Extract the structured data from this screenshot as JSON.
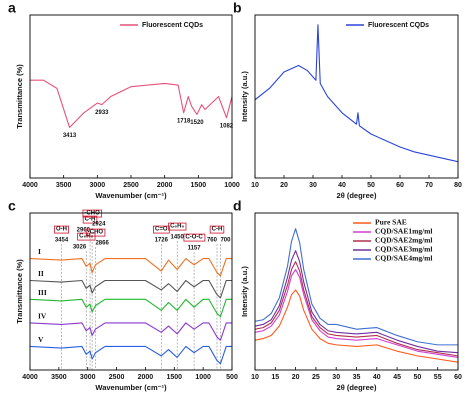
{
  "chart_data": [
    {
      "type": "line",
      "panel_label": "a",
      "xlabel": "Wavenumber (cm⁻¹)",
      "ylabel": "Transmittance (%)",
      "xlim": [
        4000,
        1000
      ],
      "xticks": [
        4000,
        3500,
        3000,
        2500,
        2000,
        1500,
        1000
      ],
      "ylim": [
        0,
        100
      ],
      "legend": "upper right",
      "x": [
        4000,
        3800,
        3600,
        3413,
        3200,
        3000,
        2933,
        2800,
        2500,
        2000,
        1800,
        1718,
        1650,
        1600,
        1520,
        1450,
        1400,
        1300,
        1200,
        1082,
        1000
      ],
      "series": [
        {
          "name": "Fluorescent CQDs",
          "color": "#e8527a",
          "values": [
            60,
            60,
            55,
            31,
            40,
            46,
            45,
            50,
            56,
            58,
            57,
            40,
            50,
            44,
            39,
            45,
            42,
            46,
            50,
            37,
            50
          ]
        }
      ],
      "peak_labels": [
        3413,
        2933,
        1718,
        1520,
        1082
      ]
    },
    {
      "type": "line",
      "panel_label": "b",
      "xlabel": "2θ (degree)",
      "ylabel": "Intensity (a.u.)",
      "xlim": [
        10,
        80
      ],
      "xticks": [
        10,
        20,
        30,
        40,
        50,
        60,
        70,
        80
      ],
      "ylim": [
        0,
        100
      ],
      "legend": "upper right",
      "x": [
        10,
        15,
        20,
        25,
        28,
        31,
        31.7,
        32.5,
        35,
        40,
        45,
        45.5,
        46,
        50,
        55,
        60,
        65,
        70,
        75,
        80
      ],
      "series": [
        {
          "name": "Fluorescent CQDs",
          "color": "#2a45d8",
          "values": [
            48,
            55,
            65,
            69,
            66,
            60,
            94,
            58,
            50,
            40,
            33,
            40,
            32,
            27,
            23,
            19,
            16,
            14,
            12,
            10
          ]
        }
      ]
    },
    {
      "type": "line",
      "panel_label": "c",
      "xlabel": "Wavenumber (cm⁻¹)",
      "ylabel": "Transmittance (%)",
      "xlim": [
        4000,
        500
      ],
      "xticks": [
        4000,
        3500,
        3000,
        2500,
        2000,
        1500,
        1000,
        500
      ],
      "ylim": [
        0,
        100
      ],
      "legend": "inline",
      "x": [
        4000,
        3454,
        3100,
        3026,
        2960,
        2924,
        2866,
        2700,
        2000,
        1726,
        1600,
        1450,
        1300,
        1157,
        1000,
        900,
        760,
        700,
        600,
        500
      ],
      "series": [
        {
          "name": "I",
          "color": "#f07020",
          "values": [
            71,
            70,
            71,
            66,
            68,
            62,
            67,
            71,
            71,
            63,
            70,
            64,
            71,
            67,
            71,
            71,
            62,
            60,
            71,
            71
          ]
        },
        {
          "name": "II",
          "color": "#555555",
          "values": [
            57,
            56,
            57,
            52,
            54,
            49,
            53,
            57,
            57,
            51,
            55,
            50,
            57,
            53,
            57,
            57,
            48,
            46,
            57,
            57
          ]
        },
        {
          "name": "III",
          "color": "#22b830",
          "values": [
            45,
            44,
            45,
            40,
            42,
            37,
            41,
            45,
            45,
            38,
            43,
            38,
            45,
            40,
            45,
            45,
            36,
            34,
            45,
            45
          ]
        },
        {
          "name": "IV",
          "color": "#8a3ad0",
          "values": [
            30,
            29,
            30,
            25,
            27,
            22,
            26,
            30,
            30,
            24,
            28,
            23,
            30,
            26,
            30,
            30,
            21,
            19,
            30,
            30
          ]
        },
        {
          "name": "V",
          "color": "#2a60e0",
          "values": [
            15,
            14,
            15,
            10,
            12,
            7,
            11,
            15,
            15,
            9,
            13,
            8,
            15,
            11,
            15,
            15,
            6,
            4,
            15,
            15
          ]
        }
      ],
      "annotations": [
        {
          "label": "O-H",
          "x": 3454
        },
        {
          "label": "C₆H₆",
          "x": 3026
        },
        {
          "label": "C-H",
          "x": 2960
        },
        {
          "label": "-CHO",
          "x": 2924
        },
        {
          "label": "-CHO",
          "x": 2866
        },
        {
          "label": "C=O",
          "x": 1726
        },
        {
          "label": "C₆H₆",
          "x": 1450
        },
        {
          "label": "C-O-C",
          "x": 1157
        },
        {
          "label": "C-H",
          "x": 760
        },
        {
          "x": 700
        }
      ]
    },
    {
      "type": "line",
      "panel_label": "d",
      "xlabel": "2θ (degree)",
      "ylabel": "Intensity (a.u.)",
      "xlim": [
        10,
        60
      ],
      "xticks": [
        10,
        15,
        20,
        25,
        30,
        35,
        40,
        45,
        50,
        55,
        60
      ],
      "ylim": [
        0,
        100
      ],
      "legend": "upper right",
      "legend_font": "serif",
      "x": [
        10,
        12,
        14,
        16,
        18,
        19,
        20,
        21,
        22,
        24,
        26,
        28,
        30,
        35,
        40,
        45,
        50,
        55,
        60
      ],
      "series": [
        {
          "name": "Pure SAE",
          "color": "#ff5a1f",
          "values": [
            19,
            20,
            22,
            28,
            40,
            48,
            51,
            47,
            38,
            26,
            20,
            17,
            16,
            15,
            16,
            12,
            9,
            7,
            5
          ]
        },
        {
          "name": "CQD/SAE1mg/ml",
          "color": "#d040d0",
          "values": [
            24,
            25,
            28,
            35,
            50,
            60,
            64,
            59,
            48,
            32,
            25,
            21,
            20,
            19,
            20,
            16,
            12,
            10,
            8
          ]
        },
        {
          "name": "CQD/SAE2mg/ml",
          "color": "#b03050",
          "values": [
            26,
            27,
            30,
            38,
            54,
            64,
            69,
            63,
            51,
            34,
            27,
            23,
            22,
            21,
            22,
            17,
            13,
            11,
            9
          ]
        },
        {
          "name": "CQD/SAE3mg/ml",
          "color": "#7030a0",
          "values": [
            28,
            29,
            32,
            41,
            59,
            70,
            76,
            69,
            56,
            37,
            29,
            25,
            24,
            23,
            24,
            19,
            15,
            12,
            11
          ]
        },
        {
          "name": "CQD/SAE4mg/ml",
          "color": "#4070d0",
          "values": [
            31,
            32,
            36,
            46,
            66,
            82,
            90,
            81,
            64,
            42,
            33,
            29,
            29,
            26,
            27,
            22,
            18,
            16,
            16
          ]
        }
      ]
    }
  ]
}
